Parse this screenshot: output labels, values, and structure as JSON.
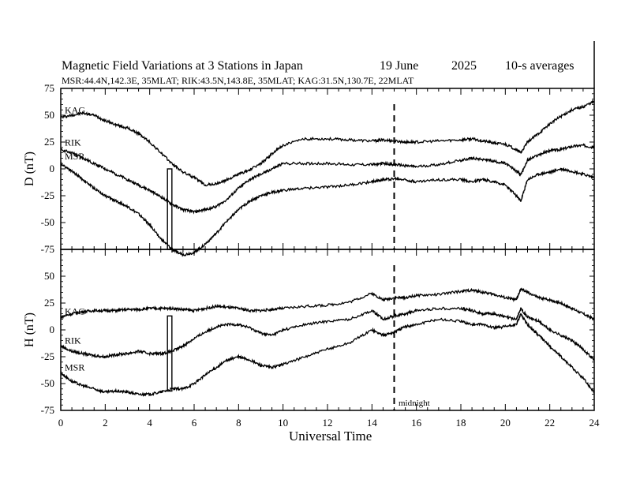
{
  "title": {
    "main": "Magnetic Field Variations at 3 Stations in Japan",
    "date": "19 June",
    "year": "2025",
    "averaging": "10-s averages",
    "stations_line": "MSR:44.4N,142.3E, 35MLAT;  RIK:43.5N,143.8E, 35MLAT;  KAG:31.5N,130.7E, 22MLAT"
  },
  "annotation": {
    "midnight": "midnight"
  },
  "chart_data": [
    {
      "type": "line",
      "panel": "D",
      "ylabel": "D (nT)",
      "xlabel": "Universal Time",
      "xlim": [
        0,
        24
      ],
      "ylim": [
        -75,
        75
      ],
      "yticks": [
        "75",
        "50",
        "25",
        "0",
        "-25",
        "-50",
        "-75"
      ],
      "xticks": [
        "0",
        "2",
        "4",
        "6",
        "8",
        "10",
        "12",
        "14",
        "16",
        "18",
        "20",
        "22",
        "24"
      ],
      "midnight_ut": 15,
      "series": [
        {
          "name": "KAG",
          "x": [
            0,
            0.5,
            1,
            1.5,
            2,
            2.5,
            3,
            3.5,
            4,
            4.5,
            5,
            5.5,
            6,
            6.5,
            7,
            7.5,
            8,
            8.5,
            9,
            9.5,
            10,
            11,
            12,
            13,
            14,
            14.5,
            15,
            15.5,
            16,
            17,
            18,
            18.5,
            19,
            19.5,
            20,
            20.5,
            20.7,
            21,
            21.5,
            22,
            22.5,
            23,
            23.5,
            24
          ],
          "y": [
            48,
            50,
            52,
            50,
            45,
            41,
            38,
            33,
            25,
            15,
            5,
            -3,
            -8,
            -15,
            -14,
            -10,
            -5,
            -1,
            5,
            14,
            22,
            28,
            28,
            27,
            26,
            27,
            26,
            25,
            25,
            26,
            27,
            28,
            26,
            24,
            23,
            18,
            15,
            25,
            33,
            42,
            49,
            55,
            58,
            63
          ]
        },
        {
          "name": "RIK",
          "x": [
            0,
            0.5,
            1,
            1.5,
            2,
            2.5,
            3,
            3.5,
            4,
            4.5,
            5,
            5.5,
            6,
            6.5,
            7,
            7.5,
            8,
            8.5,
            9,
            9.5,
            10,
            11,
            12,
            13,
            14,
            14.5,
            15,
            15.5,
            16,
            17,
            18,
            18.5,
            19,
            19.5,
            20,
            20.5,
            20.7,
            21,
            21.5,
            22,
            22.5,
            23,
            23.5,
            24
          ],
          "y": [
            18,
            15,
            10,
            5,
            0,
            -5,
            -10,
            -15,
            -20,
            -26,
            -33,
            -38,
            -40,
            -38,
            -35,
            -28,
            -18,
            -10,
            -5,
            0,
            5,
            5,
            5,
            4,
            4,
            5,
            4,
            3,
            2,
            4,
            8,
            10,
            9,
            7,
            5,
            -2,
            -5,
            8,
            13,
            17,
            18,
            21,
            22,
            20
          ]
        },
        {
          "name": "MSR",
          "x": [
            0,
            0.5,
            1,
            1.5,
            2,
            2.5,
            3,
            3.5,
            4,
            4.5,
            5,
            5.5,
            6,
            6.5,
            7,
            7.5,
            8,
            8.5,
            9,
            9.5,
            10,
            11,
            12,
            13,
            14,
            14.5,
            15,
            15.5,
            16,
            17,
            18,
            18.5,
            19,
            19.5,
            20,
            20.5,
            20.7,
            21,
            21.5,
            22,
            22.5,
            23,
            23.5,
            24
          ],
          "y": [
            5,
            -2,
            -10,
            -18,
            -25,
            -30,
            -35,
            -42,
            -52,
            -65,
            -75,
            -80,
            -78,
            -70,
            -60,
            -48,
            -38,
            -30,
            -25,
            -22,
            -20,
            -18,
            -17,
            -15,
            -12,
            -10,
            -9,
            -10,
            -12,
            -10,
            -10,
            -12,
            -10,
            -12,
            -15,
            -25,
            -30,
            -10,
            -5,
            -3,
            0,
            -2,
            -5,
            -8
          ]
        }
      ]
    },
    {
      "type": "line",
      "panel": "H",
      "ylabel": "H (nT)",
      "xlabel": "Universal Time",
      "xlim": [
        0,
        24
      ],
      "ylim": [
        -75,
        75
      ],
      "yticks": [
        "75",
        "50",
        "25",
        "0",
        "-25",
        "-50",
        "-75"
      ],
      "xticks": [
        "0",
        "2",
        "4",
        "6",
        "8",
        "10",
        "12",
        "14",
        "16",
        "18",
        "20",
        "22",
        "24"
      ],
      "midnight_ut": 15,
      "series": [
        {
          "name": "KAG",
          "x": [
            0,
            0.5,
            1,
            1.5,
            2,
            2.5,
            3,
            3.5,
            4,
            4.5,
            5,
            5.5,
            6,
            6.5,
            7,
            7.5,
            8,
            8.5,
            9,
            9.5,
            10,
            11,
            12,
            13,
            14,
            14.5,
            15,
            15.5,
            16,
            17,
            18,
            18.5,
            19,
            19.5,
            20,
            20.5,
            20.7,
            21,
            21.5,
            22,
            22.5,
            23,
            23.5,
            24
          ],
          "y": [
            12,
            15,
            17,
            18,
            18,
            18,
            19,
            19,
            20,
            20,
            20,
            19,
            18,
            20,
            22,
            21,
            20,
            18,
            18,
            19,
            20,
            22,
            23,
            26,
            34,
            28,
            30,
            30,
            32,
            33,
            36,
            37,
            35,
            33,
            30,
            28,
            38,
            35,
            30,
            28,
            25,
            20,
            15,
            10
          ]
        },
        {
          "name": "RIK",
          "x": [
            0,
            0.5,
            1,
            1.5,
            2,
            2.5,
            3,
            3.5,
            4,
            4.5,
            5,
            5.5,
            6,
            6.5,
            7,
            7.5,
            8,
            8.5,
            9,
            9.5,
            10,
            11,
            12,
            13,
            14,
            14.5,
            15,
            15.5,
            16,
            17,
            18,
            18.5,
            19,
            19.5,
            20,
            20.5,
            20.7,
            21,
            21.5,
            22,
            22.5,
            23,
            23.5,
            24
          ],
          "y": [
            -15,
            -20,
            -22,
            -24,
            -25,
            -23,
            -22,
            -20,
            -22,
            -22,
            -20,
            -15,
            -8,
            -2,
            3,
            5,
            5,
            2,
            -3,
            -5,
            0,
            5,
            8,
            10,
            18,
            10,
            13,
            15,
            18,
            20,
            20,
            18,
            15,
            15,
            12,
            10,
            20,
            12,
            8,
            0,
            -5,
            -10,
            -18,
            -28
          ]
        },
        {
          "name": "MSR",
          "x": [
            0,
            0.5,
            1,
            1.5,
            2,
            2.5,
            3,
            3.5,
            4,
            4.5,
            5,
            5.5,
            6,
            6.5,
            7,
            7.5,
            8,
            8.5,
            9,
            9.5,
            10,
            11,
            12,
            13,
            14,
            14.5,
            15,
            15.5,
            16,
            17,
            18,
            18.5,
            19,
            19.5,
            20,
            20.5,
            20.7,
            21,
            21.5,
            22,
            22.5,
            23,
            23.5,
            24
          ],
          "y": [
            -40,
            -48,
            -52,
            -55,
            -58,
            -57,
            -58,
            -60,
            -60,
            -58,
            -55,
            -55,
            -50,
            -42,
            -35,
            -28,
            -25,
            -28,
            -33,
            -35,
            -32,
            -25,
            -18,
            -12,
            0,
            -5,
            -2,
            3,
            5,
            10,
            8,
            5,
            5,
            2,
            3,
            5,
            15,
            5,
            -5,
            -15,
            -25,
            -35,
            -45,
            -58
          ]
        }
      ]
    }
  ]
}
